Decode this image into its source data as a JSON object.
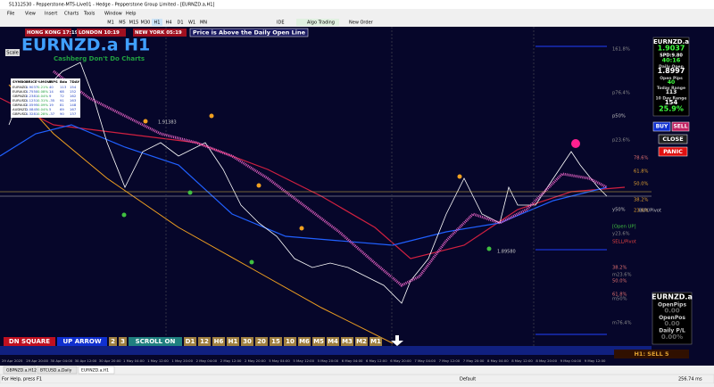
{
  "window": {
    "title": "51312530 - Pepperstone-MT5-Live01 - Hedge - Pepperstone Group Limited - [EURNZD.a,H1]"
  },
  "menu": [
    "File",
    "View",
    "Insert",
    "Charts",
    "Tools",
    "Window",
    "Help"
  ],
  "toolbar": {
    "timeframes": [
      "M1",
      "M5",
      "M15",
      "M30",
      "H1",
      "H4",
      "D1",
      "W1",
      "MN"
    ],
    "ide": "IDE",
    "algo": "Algo Trading",
    "order": "New Order"
  },
  "sessions": [
    "HONG KONG 17:19",
    "LONDON 10:19",
    "NEW YORK 05:19"
  ],
  "notice": "Price is Above the Daily Open Line",
  "chart": {
    "symbol": "EURNZD.a H1",
    "slogan": "Cashberg Don't Do Charts",
    "scale": "Scale",
    "marker": "1.91383",
    "marker2": "1.89580"
  },
  "table": {
    "header": [
      "SYMBOL",
      "PRICE",
      "%MOVE",
      "PIPS",
      "Bdo",
      "7DAY"
    ],
    "rows": [
      [
        "EURNZD",
        "1.9037",
        "0.21%",
        "40",
        "113",
        "154"
      ],
      [
        "EURAUD",
        "1.7550",
        "0.08%",
        "14",
        "68",
        "152"
      ],
      [
        "GBPNZD",
        "2.2381",
        "0.04%",
        "9",
        "72",
        "162"
      ],
      [
        "EURUSD",
        "1.1251",
        "0.31%",
        "-35",
        "91",
        "163"
      ],
      [
        "GBPAUD",
        "2.0595",
        "0.09%",
        "19",
        "81",
        "148"
      ],
      [
        "AUDNZD",
        "1.0845",
        "0.04%",
        "5",
        "69",
        "167"
      ],
      [
        "GBPUSD",
        "1.3281",
        "0.28%",
        "-37",
        "90",
        "137"
      ]
    ]
  },
  "buttons": [
    "DN SQUARE",
    "UP ARROW",
    "2",
    "3",
    "SCROLL ON",
    "D1",
    "12",
    "H6",
    "H1",
    "30",
    "20",
    "15",
    "10",
    "M6",
    "M5",
    "M4",
    "M3",
    "M2",
    "M1"
  ],
  "levels": [
    {
      "text": "161.8%",
      "color": "#8a8a8a"
    },
    {
      "text": "p76.4%",
      "color": "#8a8a8a"
    },
    {
      "text": "p50%",
      "color": "#c0c0c0"
    },
    {
      "text": "p23.6%",
      "color": "#8a8a8a"
    },
    {
      "text": "78.6%",
      "color": "#e07070"
    },
    {
      "text": "61.8%",
      "color": "#e0a030"
    },
    {
      "text": "50.0%",
      "color": "#e0a030"
    },
    {
      "text": "38.2%",
      "color": "#e0a030"
    },
    {
      "text": "23.6%",
      "color": "#e0a030"
    },
    {
      "text": "BUY/Pivot",
      "color": "#c0c0c0"
    },
    {
      "text": "y50%",
      "color": "#c0c0c0"
    },
    {
      "text": "[Open UP]",
      "color": "#40c040"
    },
    {
      "text": "y23.6%",
      "color": "#8a8a8a"
    },
    {
      "text": "SELL/Pivot",
      "color": "#e04040"
    },
    {
      "text": "m23.6%",
      "color": "#8a8a8a"
    },
    {
      "text": "38.2%",
      "color": "#e07070"
    },
    {
      "text": "50.0%",
      "color": "#e07070"
    },
    {
      "text": "61.8%",
      "color": "#e07070"
    },
    {
      "text": "m50%",
      "color": "#8a8a8a"
    },
    {
      "text": "m76.4%",
      "color": "#8a8a8a"
    }
  ],
  "panel": {
    "symbol": "EURNZD.a",
    "price": "1.9037",
    "spread": "SPD:9.80",
    "timer": "40:16",
    "open_label": "Daily Open",
    "open": "1.8997",
    "pips_label": "Open Pips",
    "pips": "40",
    "today_label": "Today Range",
    "today": "113",
    "range_label": "10 Day Range",
    "range": "154",
    "pct": "25.9%",
    "buy": "BUY",
    "sell": "SELL",
    "close": "CLOSE",
    "panic": "PANIC"
  },
  "panel2": {
    "symbol": "EURNZD.a",
    "pips_label": "OpenPips",
    "pips": "0.00",
    "pos_label": "OpenPos",
    "pos": "0.00",
    "pl_label": "Daily P/L",
    "pl": "0.00%"
  },
  "signal": "H1: SELL 5",
  "times": [
    "29 Apr 2025",
    "29 Apr 20:00",
    "30 Apr 04:00",
    "30 Apr 12:00",
    "30 Apr 20:00",
    "1 May 04:00",
    "1 May 12:00",
    "1 May 20:00",
    "2 May 04:00",
    "2 May 12:00",
    "2 May 20:00",
    "5 May 04:00",
    "5 May 12:00",
    "5 May 20:00",
    "6 May 04:00",
    "6 May 12:00",
    "6 May 20:00",
    "7 May 04:00",
    "7 May 12:00",
    "7 May 20:00",
    "8 May 04:00",
    "8 May 12:00",
    "8 May 20:00",
    "9 May 04:00",
    "9 May 12:00"
  ],
  "tabs": [
    "GBPNZD.a,H12",
    "BTCUSD.a,Daily",
    "EURNZD.a,H1"
  ],
  "status": {
    "help": "For Help, press F1",
    "profile": "Default",
    "ping": "256.74 ms"
  }
}
